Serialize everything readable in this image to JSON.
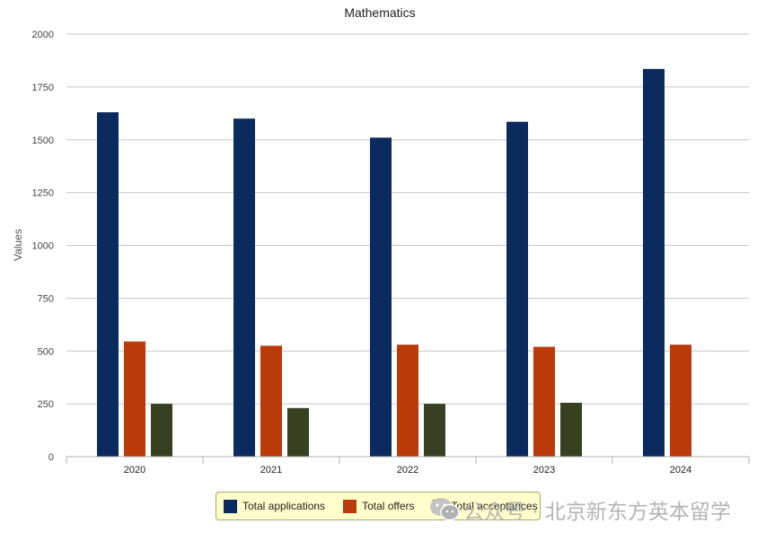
{
  "chart_data": {
    "type": "bar",
    "title": "Mathematics",
    "xlabel": "",
    "ylabel": "Values",
    "ylim": [
      0,
      2000
    ],
    "yticks": [
      0,
      250,
      500,
      750,
      1000,
      1250,
      1500,
      1750,
      2000
    ],
    "categories": [
      "2020",
      "2021",
      "2022",
      "2023",
      "2024"
    ],
    "series": [
      {
        "name": "Total applications",
        "color": "#0b2a5e",
        "values": [
          1630,
          1600,
          1510,
          1585,
          1835
        ]
      },
      {
        "name": "Total offers",
        "color": "#bb3a0a",
        "values": [
          545,
          525,
          530,
          520,
          530
        ]
      },
      {
        "name": "Total acceptances",
        "color": "#37401f",
        "values": [
          250,
          230,
          250,
          255,
          null
        ]
      }
    ],
    "grid": true,
    "legend_position": "bottom"
  },
  "watermark": {
    "text": "公众号 · 北京新东方英本留学",
    "icon": "wechat-icon"
  }
}
